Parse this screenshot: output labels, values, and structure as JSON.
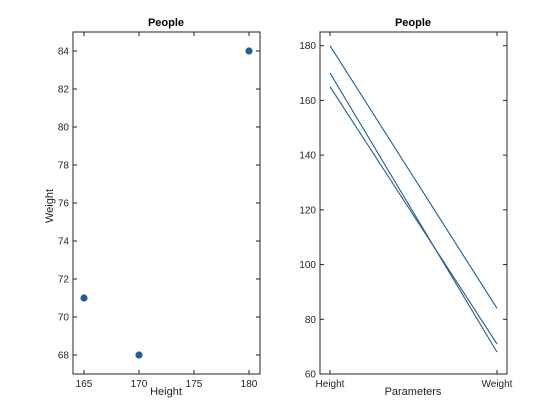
{
  "colors": {
    "series": "#1f5f97",
    "axes": "#262626",
    "background": "#ffffff"
  },
  "chart_data": [
    {
      "type": "scatter",
      "title": "People",
      "xlabel": "Height",
      "ylabel": "Weight",
      "xlim": [
        164,
        181
      ],
      "ylim": [
        67,
        85
      ],
      "xticks": [
        165,
        170,
        175,
        180
      ],
      "yticks": [
        68,
        70,
        72,
        74,
        76,
        78,
        80,
        82,
        84
      ],
      "grid": false,
      "points": [
        {
          "x": 165,
          "y": 71
        },
        {
          "x": 170,
          "y": 68
        },
        {
          "x": 180,
          "y": 84
        }
      ]
    },
    {
      "type": "line",
      "title": "People",
      "xlabel": "Parameters",
      "ylabel": "",
      "categories": [
        "Height",
        "Weight"
      ],
      "ylim": [
        60,
        185
      ],
      "yticks": [
        60,
        80,
        100,
        120,
        140,
        160,
        180
      ],
      "grid": false,
      "series": [
        {
          "values": [
            165,
            71
          ]
        },
        {
          "values": [
            170,
            68
          ]
        },
        {
          "values": [
            180,
            84
          ]
        }
      ]
    }
  ]
}
